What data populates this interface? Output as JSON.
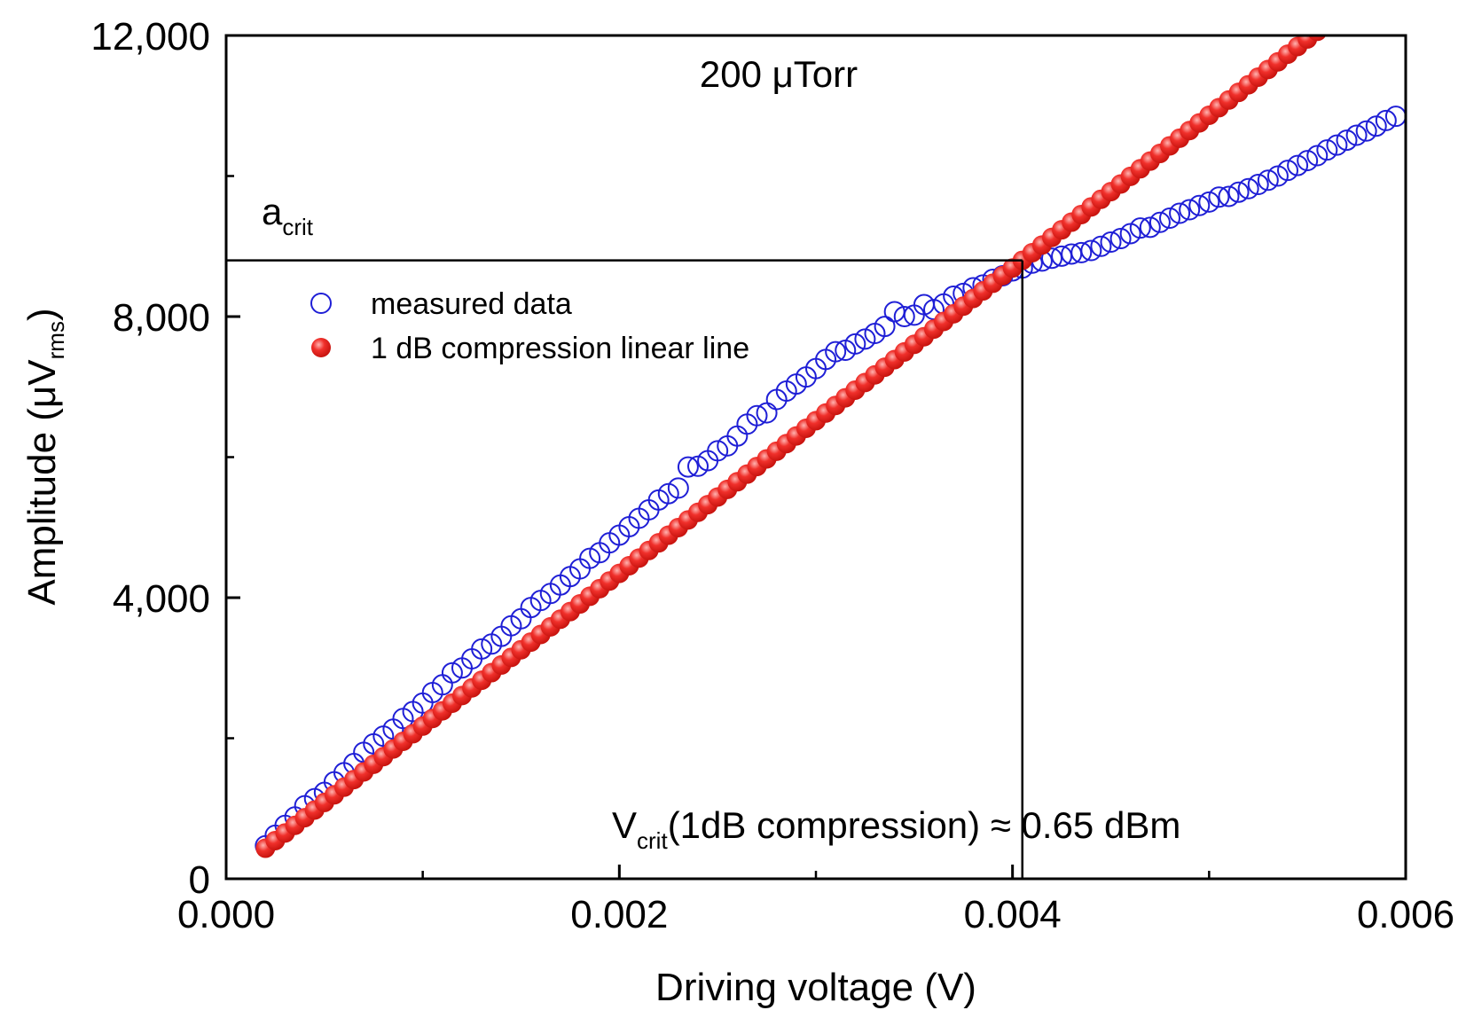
{
  "chart_data": {
    "type": "scatter",
    "title": "200 μTorr",
    "xlabel": "Driving voltage (V)",
    "ylabel": {
      "main": "Amplitude (μV",
      "sub": "rms",
      "close": ")"
    },
    "xlim": [
      0.0,
      0.006
    ],
    "ylim": [
      0,
      12000
    ],
    "x_tick_labels": [
      "0.000",
      "0.002",
      "0.004",
      "0.006"
    ],
    "x_tick_values": [
      0.0,
      0.002,
      0.004,
      0.006
    ],
    "x_minor_ticks": [
      0.001,
      0.003,
      0.005
    ],
    "y_tick_labels": [
      "0",
      "4,000",
      "8,000",
      "12,000"
    ],
    "y_tick_values": [
      0,
      4000,
      8000,
      12000
    ],
    "y_minor_ticks": [
      2000,
      6000,
      10000
    ],
    "legend": {
      "position": "upper-left",
      "entries": [
        "measured data",
        "1 dB compression linear line"
      ]
    },
    "annotations": {
      "a_crit": {
        "main": "a",
        "sub": "crit"
      },
      "v_crit": {
        "main": "V",
        "sub": "crit",
        "rest": "(1dB compression) ≈ 0.65 dBm"
      },
      "crit_point": {
        "x": 0.00405,
        "y": 8800
      }
    },
    "series": [
      {
        "name": "measured data",
        "marker": "open-circle",
        "color": "#1f1fd6",
        "x": [
          0.0002,
          0.00025,
          0.0003,
          0.00035,
          0.0004,
          0.00045,
          0.0005,
          0.00055,
          0.0006,
          0.00065,
          0.0007,
          0.00075,
          0.0008,
          0.00085,
          0.0009,
          0.00095,
          0.001,
          0.00105,
          0.0011,
          0.00115,
          0.0012,
          0.00125,
          0.0013,
          0.00135,
          0.0014,
          0.00145,
          0.0015,
          0.00155,
          0.0016,
          0.00165,
          0.0017,
          0.00175,
          0.0018,
          0.00185,
          0.0019,
          0.00195,
          0.002,
          0.00205,
          0.0021,
          0.00215,
          0.0022,
          0.00225,
          0.0023,
          0.00235,
          0.0024,
          0.00245,
          0.0025,
          0.00255,
          0.0026,
          0.00265,
          0.0027,
          0.00275,
          0.0028,
          0.00285,
          0.0029,
          0.00295,
          0.003,
          0.00305,
          0.0031,
          0.00315,
          0.0032,
          0.00325,
          0.0033,
          0.00335,
          0.0034,
          0.00345,
          0.0035,
          0.00355,
          0.0036,
          0.00365,
          0.0037,
          0.00375,
          0.0038,
          0.00385,
          0.0039,
          0.00395,
          0.004,
          0.00405,
          0.0041,
          0.00415,
          0.0042,
          0.00425,
          0.0043,
          0.00435,
          0.0044,
          0.00445,
          0.0045,
          0.00455,
          0.0046,
          0.00465,
          0.0047,
          0.00475,
          0.0048,
          0.00485,
          0.0049,
          0.00495,
          0.005,
          0.00505,
          0.0051,
          0.00515,
          0.0052,
          0.00525,
          0.0053,
          0.00535,
          0.0054,
          0.00545,
          0.0055,
          0.00555,
          0.0056,
          0.00565,
          0.0057,
          0.00575,
          0.0058,
          0.00585,
          0.0059,
          0.00595
        ],
        "y": [
          470,
          620,
          760,
          880,
          1040,
          1140,
          1230,
          1380,
          1510,
          1640,
          1800,
          1920,
          2030,
          2130,
          2280,
          2380,
          2500,
          2650,
          2760,
          2930,
          3000,
          3130,
          3270,
          3340,
          3450,
          3600,
          3700,
          3860,
          3960,
          4060,
          4180,
          4300,
          4410,
          4560,
          4640,
          4780,
          4890,
          5010,
          5130,
          5250,
          5390,
          5480,
          5560,
          5860,
          5870,
          5950,
          6090,
          6160,
          6300,
          6470,
          6590,
          6630,
          6820,
          6940,
          7040,
          7140,
          7260,
          7390,
          7500,
          7520,
          7610,
          7680,
          7760,
          7860,
          8070,
          8000,
          8020,
          8170,
          8100,
          8180,
          8290,
          8330,
          8410,
          8450,
          8530,
          8580,
          8650,
          8690,
          8760,
          8790,
          8830,
          8860,
          8890,
          8910,
          8940,
          9000,
          9060,
          9110,
          9180,
          9260,
          9270,
          9340,
          9400,
          9470,
          9520,
          9580,
          9630,
          9700,
          9710,
          9770,
          9820,
          9880,
          9940,
          10000,
          10080,
          10150,
          10220,
          10290,
          10370,
          10440,
          10510,
          10580,
          10640,
          10710,
          10790,
          10850
        ]
      },
      {
        "name": "1 dB compression linear line",
        "marker": "filled-circle",
        "color": "#e8201c",
        "slope": 2172840,
        "x_start": 0.0002,
        "x_end": 0.00557,
        "x_step": 5e-05
      }
    ]
  }
}
